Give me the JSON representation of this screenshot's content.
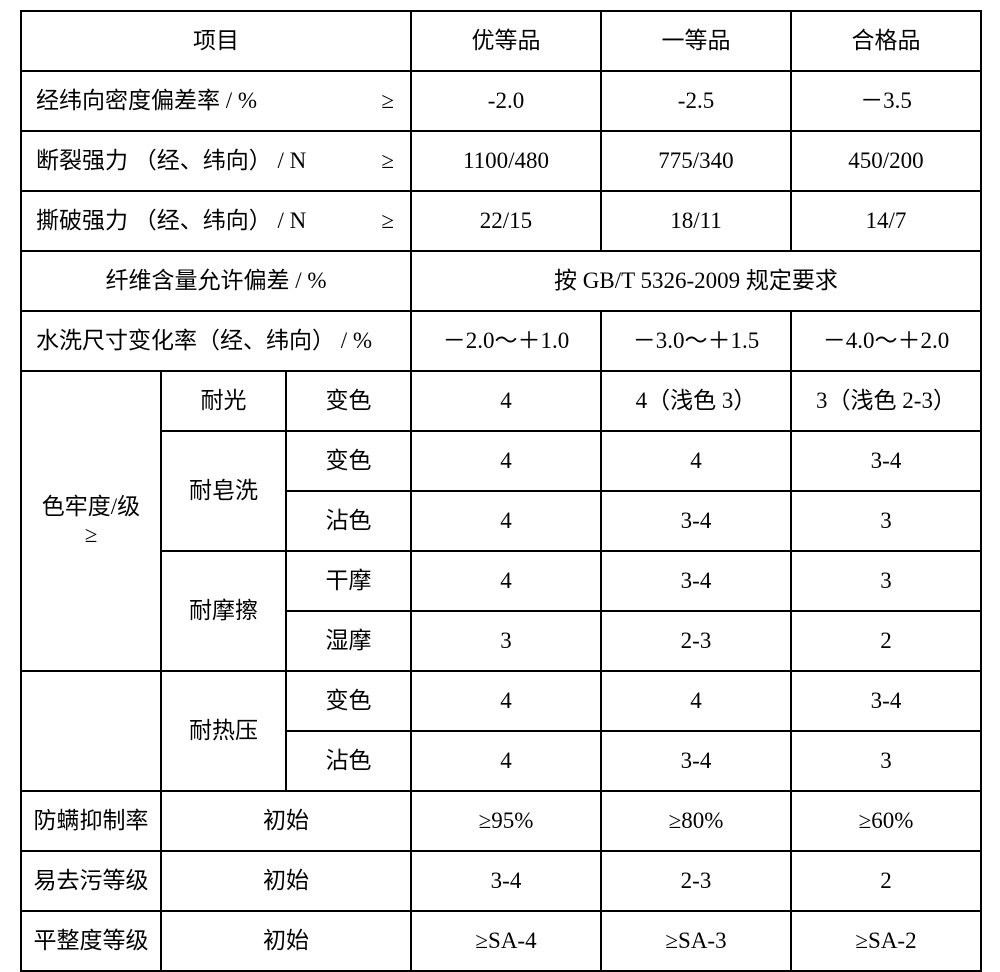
{
  "header": {
    "project": "项目",
    "grade_a": "优等品",
    "grade_b": "一等品",
    "grade_c": "合格品"
  },
  "rows": {
    "density": {
      "label": "经纬向密度偏差率  / %",
      "ge": "≥",
      "a": "-2.0",
      "b": "-2.5",
      "c": "－3.5"
    },
    "break": {
      "label": "断裂强力 （经、纬向） / N",
      "ge": "≥",
      "a": "1100/480",
      "b": "775/340",
      "c": "450/200"
    },
    "tear": {
      "label": "撕破强力 （经、纬向）  / N",
      "ge": "≥",
      "a": "22/15",
      "b": "18/11",
      "c": "14/7"
    },
    "fiber": {
      "label": "纤维含量允许偏差  / %",
      "merged": "按 GB/T 5326-2009 规定要求"
    },
    "wash": {
      "label": "水洗尺寸变化率（经、纬向） /  %",
      "a": "－2.0～＋1.0",
      "b": "－3.0～＋1.5",
      "c": "－4.0～＋2.0"
    },
    "fastness_label_l1": "色牢度/级",
    "fastness_label_l2": "≥",
    "light": {
      "cat": "耐光",
      "sub": "变色",
      "a": "4",
      "b": "4（浅色 3）",
      "c": "3（浅色 2-3）"
    },
    "soap1": {
      "cat": "耐皂洗",
      "sub": "变色",
      "a": "4",
      "b": "4",
      "c": "3-4"
    },
    "soap2": {
      "sub": "沾色",
      "a": "4",
      "b": "3-4",
      "c": "3"
    },
    "rub1": {
      "cat": "耐摩擦",
      "sub": "干摩",
      "a": "4",
      "b": "3-4",
      "c": "3"
    },
    "rub2": {
      "sub": "湿摩",
      "a": "3",
      "b": "2-3",
      "c": "2"
    },
    "heat1": {
      "cat": "耐热压",
      "sub": "变色",
      "a": "4",
      "b": "4",
      "c": "3-4"
    },
    "heat2": {
      "sub": "沾色",
      "a": "4",
      "b": "3-4",
      "c": "3"
    },
    "mite": {
      "label": "防螨抑制率",
      "sub": "初始",
      "a": "≥95%",
      "b": "≥80%",
      "c": "≥60%"
    },
    "soil": {
      "label": "易去污等级",
      "sub": "初始",
      "a": "3-4",
      "b": "2-3",
      "c": "2"
    },
    "flat": {
      "label": "平整度等级",
      "sub": "初始",
      "a": "≥SA-4",
      "b": "≥SA-3",
      "c": "≥SA-2"
    }
  }
}
